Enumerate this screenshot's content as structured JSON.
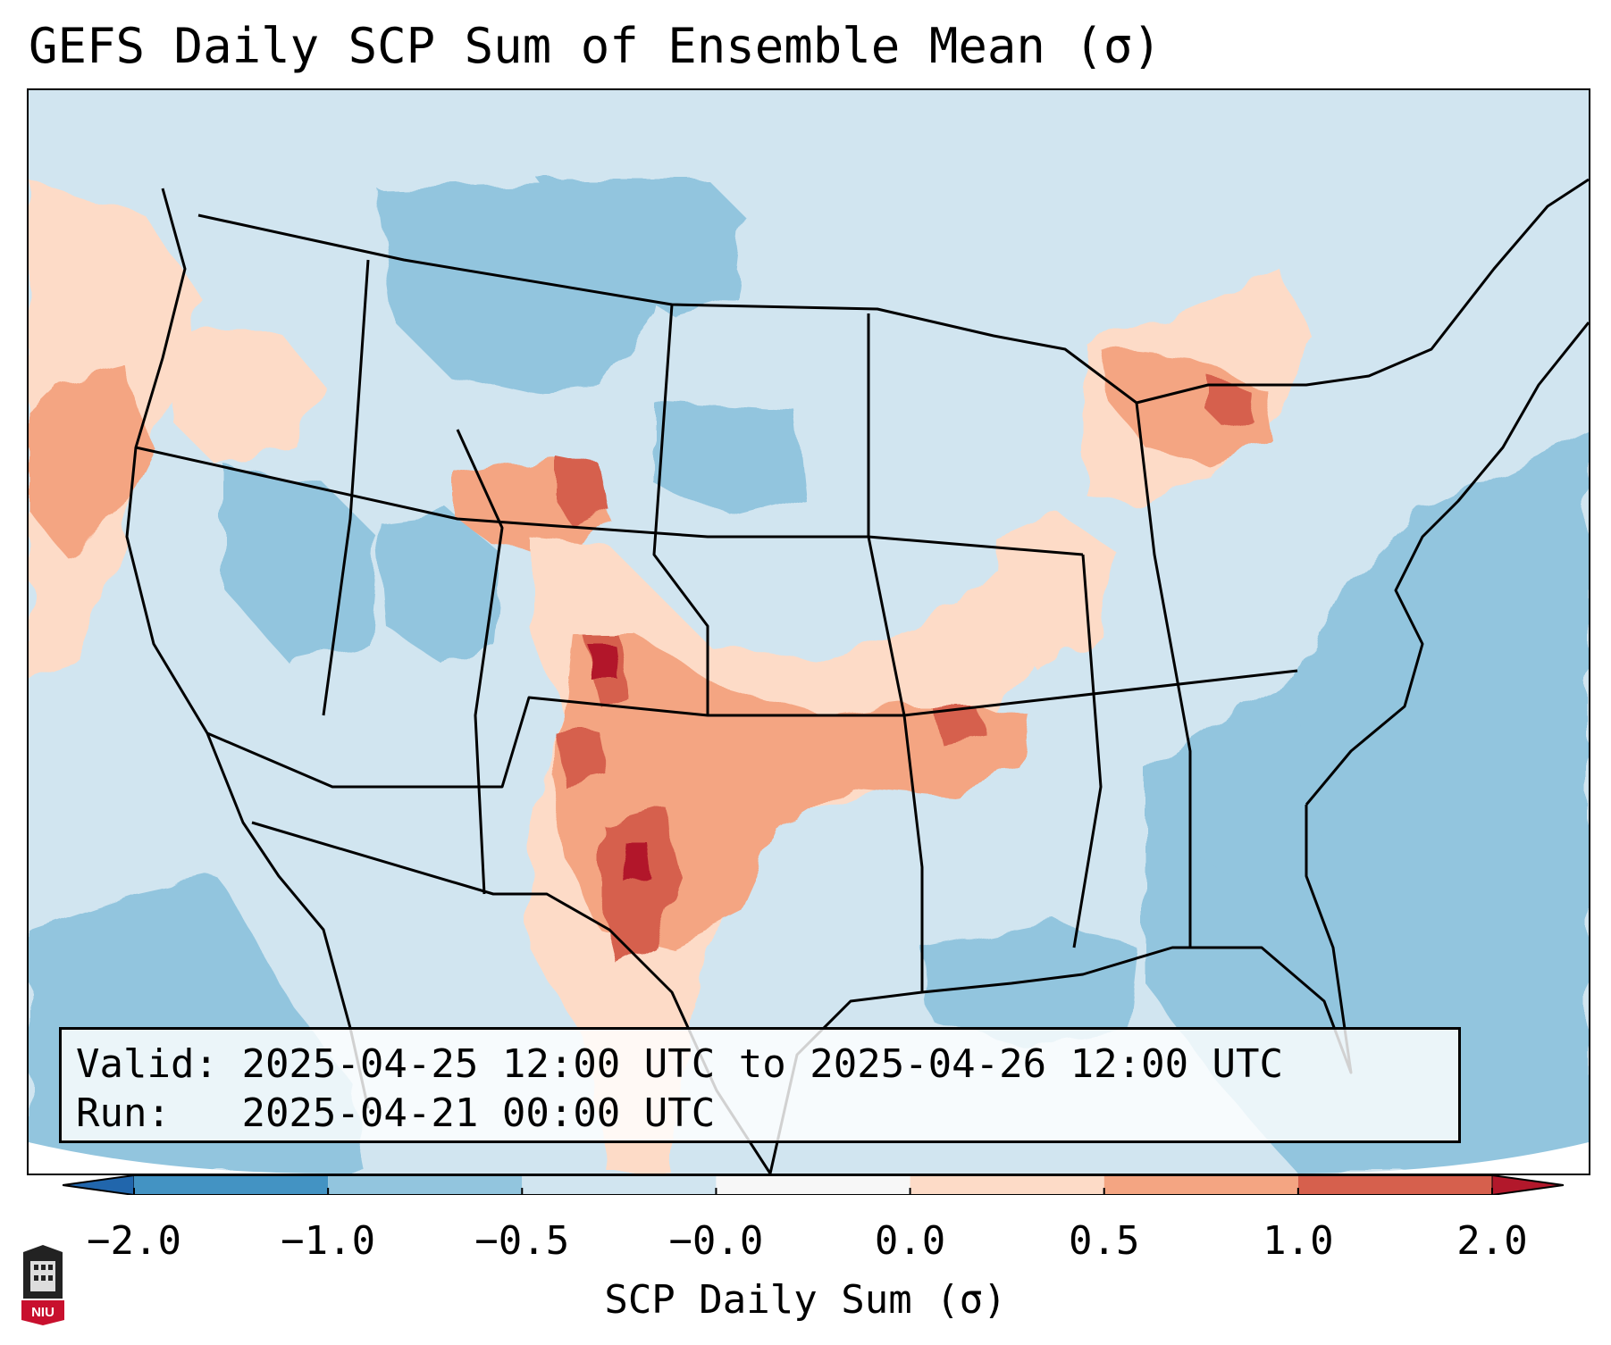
{
  "title": "GEFS Daily SCP Sum of Ensemble Mean (σ)",
  "info": {
    "valid_label": "Valid:",
    "valid_value": "2025-04-25 12:00 UTC to 2025-04-26 12:00 UTC",
    "run_label": "Run:",
    "run_value": "2025-04-21 00:00 UTC"
  },
  "colorbar": {
    "label": "SCP Daily Sum (σ)",
    "ticks": [
      "−2.0",
      "−1.0",
      "−0.5",
      "−0.0",
      "0.0",
      "0.5",
      "1.0",
      "2.0"
    ],
    "bins": [
      {
        "from": -2.0,
        "to": -1.0,
        "color": "#4393c3"
      },
      {
        "from": -1.0,
        "to": -0.5,
        "color": "#92c5de"
      },
      {
        "from": -0.5,
        "to": -0.0,
        "color": "#d1e5f0"
      },
      {
        "from": -0.0,
        "to": 0.0,
        "color": "#f7f7f7"
      },
      {
        "from": 0.0,
        "to": 0.5,
        "color": "#fddbc7"
      },
      {
        "from": 0.5,
        "to": 1.0,
        "color": "#f4a582"
      },
      {
        "from": 1.0,
        "to": 2.0,
        "color": "#d6604d"
      }
    ],
    "under_color": "#2166ac",
    "over_color": "#b2182b",
    "extend": "both"
  },
  "logo": {
    "text": "NIU",
    "color": "#c8102e"
  },
  "map": {
    "projection": "Lambert conformal (CONUS)",
    "background_color": "#d1e5f0",
    "ocean_color": "#92c5de",
    "boundary_color": "#000000"
  }
}
